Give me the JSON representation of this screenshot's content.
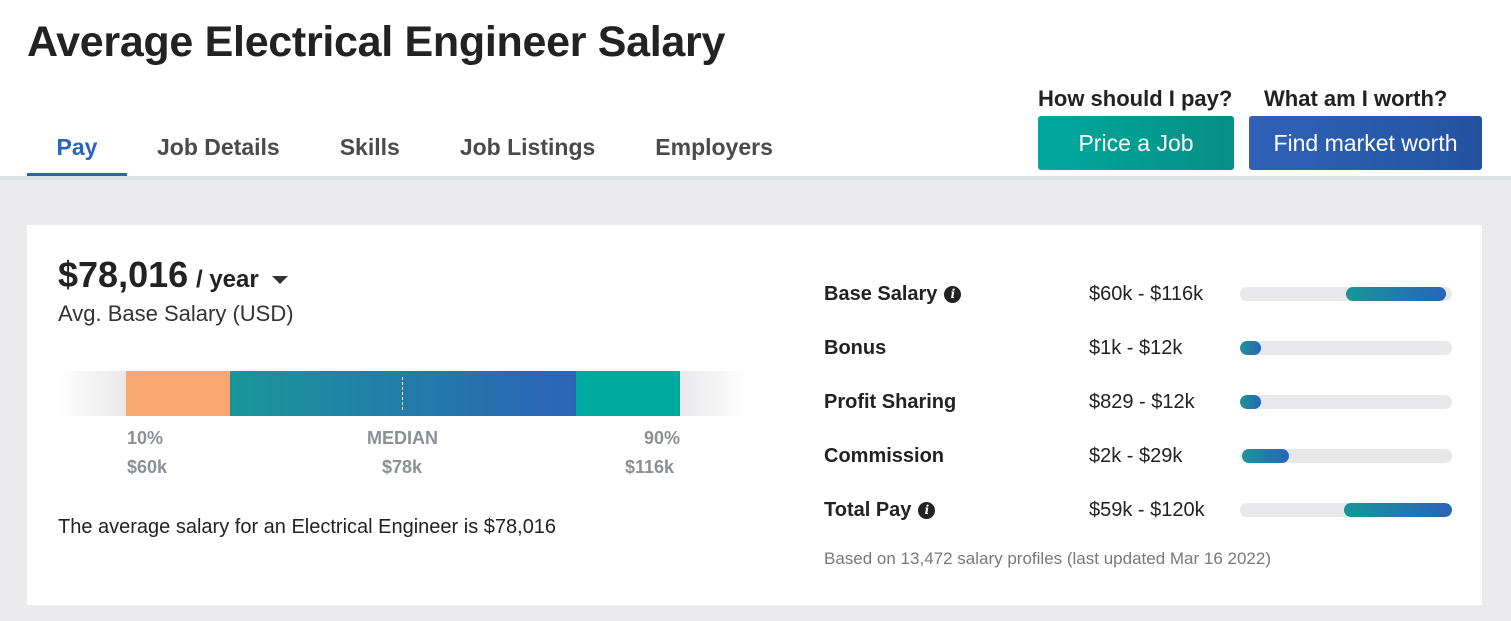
{
  "header": {
    "title": "Average Electrical Engineer Salary",
    "tabs": [
      {
        "label": "Pay",
        "active": true
      },
      {
        "label": "Job Details",
        "active": false
      },
      {
        "label": "Skills",
        "active": false
      },
      {
        "label": "Job Listings",
        "active": false
      },
      {
        "label": "Employers",
        "active": false
      }
    ],
    "cta": {
      "price_question": "How should I pay?",
      "price_button": "Price a Job",
      "worth_question": "What am I worth?",
      "worth_button": "Find market worth"
    }
  },
  "summary": {
    "salary": "$78,016",
    "period": "/ year",
    "subtitle": "Avg. Base Salary (USD)",
    "range_bar": {
      "p10_label": "10%",
      "p10_value": "$60k",
      "median_label": "MEDIAN",
      "median_value": "$78k",
      "p90_label": "90%",
      "p90_value": "$116k"
    },
    "avg_sentence": "The average salary for an Electrical Engineer is $78,016"
  },
  "pay_breakdown": {
    "rows": [
      {
        "name": "Base Salary",
        "range": "$60k - $116k",
        "info": true,
        "fill_start": 0.5,
        "fill_end": 0.97
      },
      {
        "name": "Bonus",
        "range": "$1k - $12k",
        "info": false,
        "fill_start": 0.0,
        "fill_end": 0.1
      },
      {
        "name": "Profit Sharing",
        "range": "$829 - $12k",
        "info": false,
        "fill_start": 0.0,
        "fill_end": 0.1
      },
      {
        "name": "Commission",
        "range": "$2k - $29k",
        "info": false,
        "fill_start": 0.01,
        "fill_end": 0.23
      },
      {
        "name": "Total Pay",
        "range": "$59k - $120k",
        "info": true,
        "fill_start": 0.49,
        "fill_end": 1.0
      }
    ],
    "footnote": "Based on 13,472 salary profiles (last updated Mar 16 2022)"
  },
  "colors": {
    "accent_blue": "#2c63b8",
    "teal": "#00a99d",
    "orange": "#f8a76f"
  }
}
